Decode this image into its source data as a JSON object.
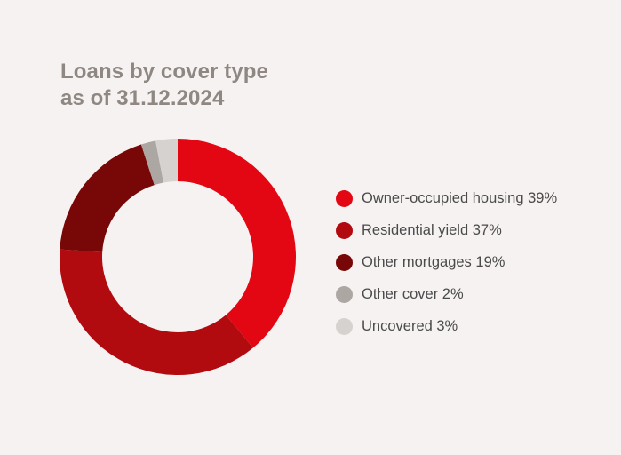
{
  "title": {
    "line1": "Loans by cover type",
    "line2": "as of 31.12.2024"
  },
  "chart_data": {
    "type": "pie",
    "donut": true,
    "title": "Loans by cover type as of 31.12.2024",
    "categories": [
      "Owner-occupied housing",
      "Residential yield",
      "Other mortgages",
      "Other cover",
      "Uncovered"
    ],
    "values": [
      39,
      37,
      19,
      2,
      3
    ],
    "unit": "%",
    "colors": [
      "#e30613",
      "#b20b0f",
      "#780707",
      "#aca7a3",
      "#d6d2d0"
    ],
    "legend_position": "right",
    "legend": [
      {
        "label": "Owner-occupied housing 39%",
        "color": "#e30613"
      },
      {
        "label": "Residential yield 37%",
        "color": "#b20b0f"
      },
      {
        "label": "Other mortgages 19%",
        "color": "#780707"
      },
      {
        "label": "Other cover 2%",
        "color": "#aca7a3"
      },
      {
        "label": "Uncovered 3%",
        "color": "#d6d2d0"
      }
    ]
  }
}
